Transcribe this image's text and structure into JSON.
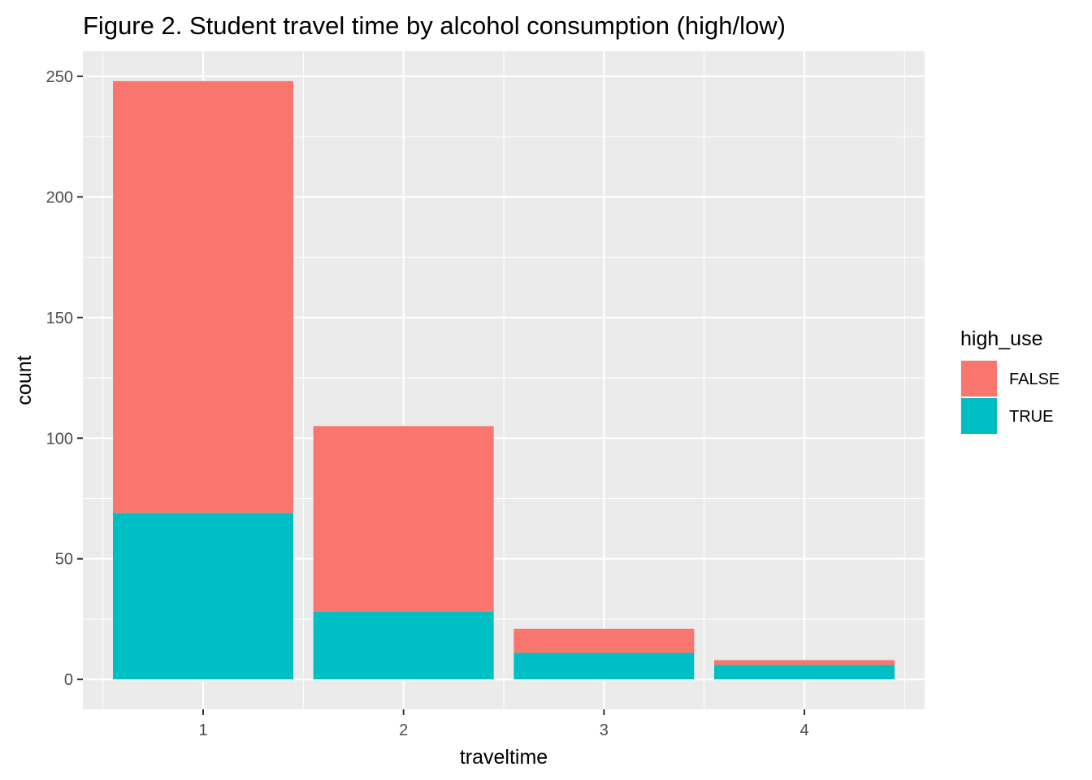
{
  "chart_data": {
    "type": "bar",
    "stacked": true,
    "title": "Figure 2. Student travel time by alcohol consumption (high/low)",
    "xlabel": "traveltime",
    "ylabel": "count",
    "categories": [
      "1",
      "2",
      "3",
      "4"
    ],
    "series": [
      {
        "name": "FALSE",
        "values": [
          179,
          77,
          10,
          2
        ],
        "color": "#F8766D"
      },
      {
        "name": "TRUE",
        "values": [
          69,
          28,
          11,
          6
        ],
        "color": "#00BFC4"
      }
    ],
    "ylim": [
      0,
      260
    ],
    "yticks": [
      0,
      50,
      100,
      150,
      200,
      250
    ],
    "grid": true,
    "legend": {
      "title": "high_use",
      "position": "right"
    },
    "panel_background": "#EBEBEB",
    "grid_color": "#FFFFFF"
  }
}
